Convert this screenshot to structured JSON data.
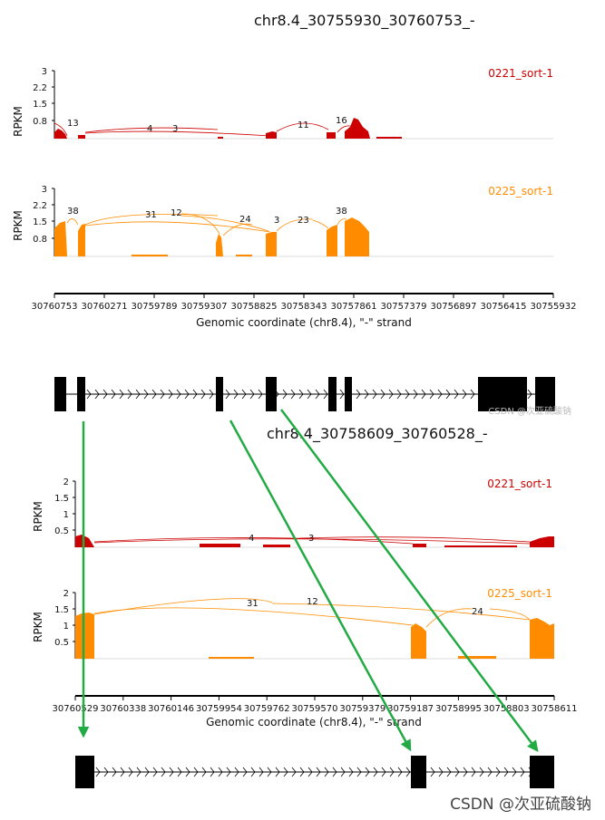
{
  "chart_data": [
    {
      "type": "sashimi",
      "title": "chr8.4_30755930_30760753_-",
      "xlabel": "Genomic coordinate (chr8.4), \"-\" strand",
      "xticks": [
        "30760753",
        "30760271",
        "30759789",
        "30759307",
        "30758825",
        "30758343",
        "30757861",
        "30757379",
        "30756897",
        "30756415",
        "30755932"
      ],
      "tracks": [
        {
          "name": "0221_sort-1",
          "color": "#cc0000",
          "ylabel": "RPKM",
          "yticks": [
            "3",
            "2.2",
            "1.5",
            "0.8"
          ],
          "junction_labels": [
            "13",
            "4",
            "3",
            "11",
            "16"
          ]
        },
        {
          "name": "0225_sort-1",
          "color": "#ff8c00",
          "ylabel": "RPKM",
          "yticks": [
            "3",
            "2.2",
            "1.5",
            "0.8"
          ],
          "junction_labels": [
            "38",
            "31",
            "12",
            "24",
            "3",
            "23",
            "38"
          ]
        }
      ]
    },
    {
      "type": "sashimi",
      "title": "chr8.4_30758609_30760528_-",
      "xlabel": "Genomic coordinate (chr8.4), \"-\" strand",
      "xticks": [
        "30760529",
        "30760338",
        "30760146",
        "30759954",
        "30759762",
        "30759570",
        "30759379",
        "30759187",
        "30758995",
        "30758803",
        "30758611"
      ],
      "tracks": [
        {
          "name": "0221_sort-1",
          "color": "#cc0000",
          "ylabel": "RPKM",
          "yticks": [
            "2",
            "1.5",
            "1",
            "0.5"
          ],
          "junction_labels": [
            "4",
            "3"
          ]
        },
        {
          "name": "0225_sort-1",
          "color": "#ff8c00",
          "ylabel": "RPKM",
          "yticks": [
            "2",
            "1.5",
            "1",
            "0.5"
          ],
          "junction_labels": [
            "31",
            "12",
            "24"
          ]
        }
      ]
    }
  ],
  "annotation_color": "#22aa44",
  "watermark_small": "CSDN @次亚硫酸钠",
  "watermark_large": "CSDN @次亚硫酸钠"
}
